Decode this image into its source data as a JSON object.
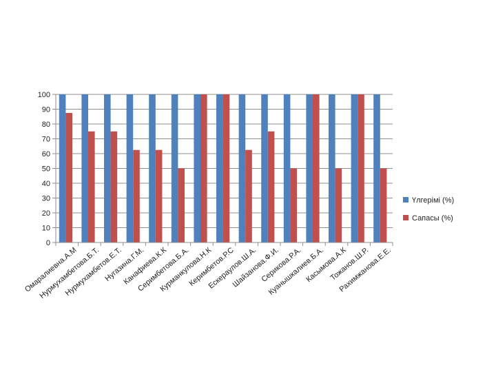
{
  "chart_data": {
    "type": "bar",
    "categories": [
      "Омаралиевна.А.М",
      "Нурмухамбетова.Б.Т.",
      "Нурмухамбетов.Е.Т.",
      "Нугазина.Г.М.",
      "Канафиева.К.К",
      "Серимбетова.Б.А.",
      "Курманкулова.Н.К",
      "Керимбетов.Р.С",
      "Ескераулов.Ш.А.",
      "Шайзанова.Ф.И.",
      "Серикова.Р.А.",
      "Куанышкалиев.Б.А.",
      "Касымова.А.К",
      "Тожанов.Ш.Р.",
      "Рахимжанова.Е.Е."
    ],
    "series": [
      {
        "name": "Үлгерімі (%)",
        "color": "#4F81BD",
        "values": [
          100,
          100,
          100,
          100,
          100,
          100,
          100,
          100,
          100,
          100,
          100,
          100,
          100,
          100,
          100
        ]
      },
      {
        "name": "Сапасы (%)",
        "color": "#C0504D",
        "values": [
          87.5,
          75,
          75,
          62.5,
          62.5,
          50,
          100,
          100,
          62.5,
          75,
          50,
          100,
          50,
          100,
          50
        ]
      }
    ],
    "yticks": [
      "0",
      "10",
      "20",
      "30",
      "40",
      "50",
      "60",
      "70",
      "80",
      "90",
      "100"
    ],
    "ylim": [
      0,
      100
    ],
    "grid": true,
    "legend_position": "right"
  }
}
